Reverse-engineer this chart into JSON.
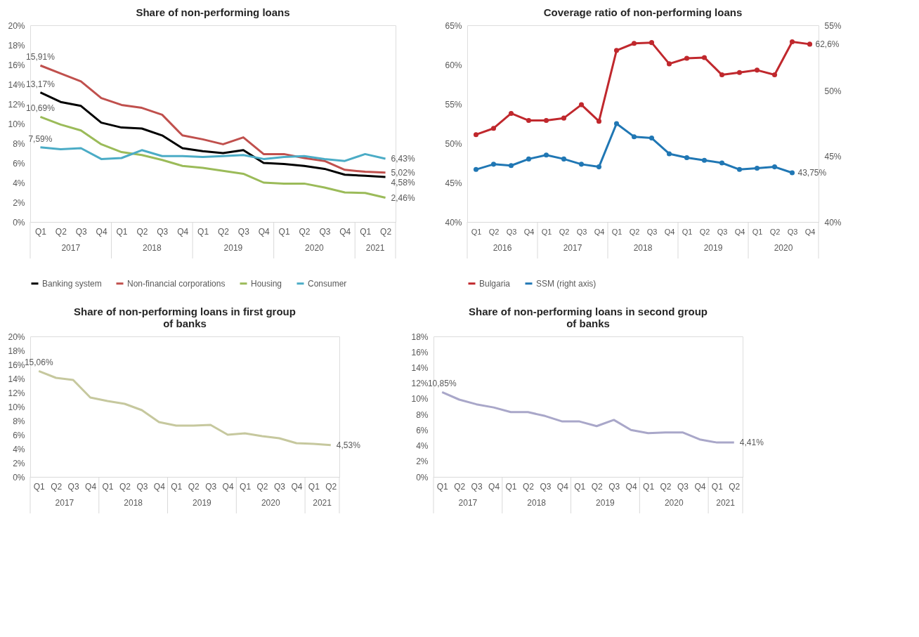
{
  "chart_data": [
    {
      "type": "line",
      "title": "Share of non-performing loans",
      "categories": [
        "Q1",
        "Q2",
        "Q3",
        "Q4",
        "Q1",
        "Q2",
        "Q3",
        "Q4",
        "Q1",
        "Q2",
        "Q3",
        "Q4",
        "Q1",
        "Q2",
        "Q3",
        "Q4",
        "Q1",
        "Q2"
      ],
      "annotations": [
        "2017",
        "2018",
        "2019",
        "2020",
        "2021"
      ],
      "ylim": [
        0,
        20
      ],
      "yticks": [
        {
          "value": 0,
          "label": "0%"
        },
        {
          "value": 2,
          "label": "2%"
        },
        {
          "value": 4,
          "label": "4%"
        },
        {
          "value": 6,
          "label": "6%"
        },
        {
          "value": 8,
          "label": "8%"
        },
        {
          "value": 10,
          "label": "10%"
        },
        {
          "value": 12,
          "label": "12%"
        },
        {
          "value": 14,
          "label": "14%"
        },
        {
          "value": 16,
          "label": "16%"
        },
        {
          "value": 18,
          "label": "18%"
        },
        {
          "value": 20,
          "label": "20%"
        }
      ],
      "legend": "bottom",
      "series": [
        {
          "name": "Banking system",
          "color": "#000000",
          "values": [
            13.17,
            12.2,
            11.8,
            10.1,
            9.6,
            9.5,
            8.8,
            7.5,
            7.2,
            7.0,
            7.3,
            6.0,
            5.9,
            5.7,
            5.4,
            4.8,
            4.7,
            4.58
          ],
          "value_labels": [
            "13,17%",
            null,
            null,
            null,
            null,
            null,
            null,
            null,
            null,
            null,
            null,
            null,
            null,
            null,
            null,
            null,
            null,
            "4,58%"
          ]
        },
        {
          "name": "Non-financial corporations",
          "color": "#c0504d",
          "values": [
            15.91,
            15.1,
            14.3,
            12.6,
            11.9,
            11.6,
            10.9,
            8.8,
            8.4,
            7.9,
            8.6,
            6.9,
            6.9,
            6.5,
            6.2,
            5.3,
            5.1,
            5.02
          ],
          "value_labels": [
            "15,91%",
            null,
            null,
            null,
            null,
            null,
            null,
            null,
            null,
            null,
            null,
            null,
            null,
            null,
            null,
            null,
            null,
            "5,02%"
          ]
        },
        {
          "name": "Housing",
          "color": "#9bbb59",
          "values": [
            10.69,
            9.9,
            9.3,
            7.9,
            7.1,
            6.8,
            6.3,
            5.7,
            5.5,
            5.2,
            4.9,
            4.0,
            3.9,
            3.9,
            3.5,
            3.0,
            2.95,
            2.46
          ],
          "value_labels": [
            "10,69%",
            null,
            null,
            null,
            null,
            null,
            null,
            null,
            null,
            null,
            null,
            null,
            null,
            null,
            null,
            null,
            null,
            "2,46%"
          ]
        },
        {
          "name": "Consumer",
          "color": "#4bacc6",
          "values": [
            7.59,
            7.4,
            7.5,
            6.4,
            6.5,
            7.3,
            6.7,
            6.7,
            6.6,
            6.7,
            6.8,
            6.4,
            6.6,
            6.7,
            6.4,
            6.2,
            6.9,
            6.43
          ],
          "value_labels": [
            "7,59%",
            null,
            null,
            null,
            null,
            null,
            null,
            null,
            null,
            null,
            null,
            null,
            null,
            null,
            null,
            null,
            null,
            "6,43%"
          ]
        }
      ]
    },
    {
      "type": "line",
      "title": "Coverage ratio of non-performing loans",
      "categories": [
        "Q1",
        "Q2",
        "Q3",
        "Q4",
        "Q1",
        "Q2",
        "Q3",
        "Q4",
        "Q1",
        "Q2",
        "Q3",
        "Q4",
        "Q1",
        "Q2",
        "Q3",
        "Q4",
        "Q1",
        "Q2",
        "Q3",
        "Q4"
      ],
      "annotations": [
        "2016",
        "2017",
        "2018",
        "2019",
        "2020"
      ],
      "ylim": [
        40,
        65
      ],
      "yticks": [
        {
          "value": 40,
          "label": "40%"
        },
        {
          "value": 45,
          "label": "45%"
        },
        {
          "value": 50,
          "label": "50%"
        },
        {
          "value": 55,
          "label": "55%"
        },
        {
          "value": 60,
          "label": "60%"
        },
        {
          "value": 65,
          "label": "65%"
        }
      ],
      "y2lim": [
        40,
        55
      ],
      "y2ticks": [
        {
          "value": 40,
          "label": "40%"
        },
        {
          "value": 45,
          "label": "45%"
        },
        {
          "value": 50,
          "label": "50%"
        },
        {
          "value": 55,
          "label": "55%"
        }
      ],
      "legend": "bottom",
      "marker": "circle",
      "series": [
        {
          "name": "Bulgaria",
          "color": "#c0282d",
          "values": [
            51.1,
            51.9,
            53.8,
            52.9,
            52.9,
            53.2,
            54.9,
            52.8,
            61.8,
            62.7,
            62.8,
            60.1,
            60.8,
            60.9,
            58.7,
            59.0,
            59.3,
            58.7,
            62.9,
            62.6
          ],
          "value_labels": [
            null,
            null,
            null,
            null,
            null,
            null,
            null,
            null,
            null,
            null,
            null,
            null,
            null,
            null,
            null,
            null,
            null,
            null,
            null,
            "62,6%"
          ]
        },
        {
          "name": "SSM (right axis)",
          "color": "#2077b4",
          "axis": "y2",
          "values": [
            44.0,
            44.4,
            44.3,
            44.8,
            45.1,
            44.8,
            44.4,
            44.2,
            47.5,
            46.5,
            46.4,
            45.2,
            44.9,
            44.7,
            44.5,
            44.0,
            44.1,
            44.2,
            43.75,
            null
          ],
          "value_labels": [
            null,
            null,
            null,
            null,
            null,
            null,
            null,
            null,
            null,
            null,
            null,
            null,
            null,
            null,
            null,
            null,
            null,
            null,
            "43,75%",
            null
          ]
        }
      ]
    },
    {
      "type": "line",
      "title": "Share of non-performing loans in first group of banks",
      "categories": [
        "Q1",
        "Q2",
        "Q3",
        "Q4",
        "Q1",
        "Q2",
        "Q3",
        "Q4",
        "Q1",
        "Q2",
        "Q3",
        "Q4",
        "Q1",
        "Q2",
        "Q3",
        "Q4",
        "Q1",
        "Q2"
      ],
      "annotations": [
        "2017",
        "2018",
        "2019",
        "2020",
        "2021"
      ],
      "ylim": [
        0,
        20
      ],
      "yticks": [
        {
          "value": 0,
          "label": "0%"
        },
        {
          "value": 2,
          "label": "2%"
        },
        {
          "value": 4,
          "label": "4%"
        },
        {
          "value": 6,
          "label": "6%"
        },
        {
          "value": 8,
          "label": "8%"
        },
        {
          "value": 10,
          "label": "10%"
        },
        {
          "value": 12,
          "label": "12%"
        },
        {
          "value": 14,
          "label": "14%"
        },
        {
          "value": 16,
          "label": "16%"
        },
        {
          "value": 18,
          "label": "18%"
        },
        {
          "value": 20,
          "label": "20%"
        }
      ],
      "series": [
        {
          "color": "#c6c89e",
          "values": [
            15.06,
            14.1,
            13.8,
            11.3,
            10.8,
            10.4,
            9.5,
            7.8,
            7.3,
            7.3,
            7.4,
            6.0,
            6.2,
            5.8,
            5.5,
            4.8,
            4.7,
            4.53
          ],
          "value_labels": [
            "15,06%",
            null,
            null,
            null,
            null,
            null,
            null,
            null,
            null,
            null,
            null,
            null,
            null,
            null,
            null,
            null,
            null,
            "4,53%"
          ]
        }
      ]
    },
    {
      "type": "line",
      "title": "Share of non-performing loans in second group of banks",
      "categories": [
        "Q1",
        "Q2",
        "Q3",
        "Q4",
        "Q1",
        "Q2",
        "Q3",
        "Q4",
        "Q1",
        "Q2",
        "Q3",
        "Q4",
        "Q1",
        "Q2",
        "Q3",
        "Q4",
        "Q1",
        "Q2"
      ],
      "annotations": [
        "2017",
        "2018",
        "2019",
        "2020",
        "2021"
      ],
      "ylim": [
        0,
        18
      ],
      "yticks": [
        {
          "value": 0,
          "label": "0%"
        },
        {
          "value": 2,
          "label": "2%"
        },
        {
          "value": 4,
          "label": "4%"
        },
        {
          "value": 6,
          "label": "6%"
        },
        {
          "value": 8,
          "label": "8%"
        },
        {
          "value": 10,
          "label": "10%"
        },
        {
          "value": 12,
          "label": "12%"
        },
        {
          "value": 14,
          "label": "14%"
        },
        {
          "value": 16,
          "label": "16%"
        },
        {
          "value": 18,
          "label": "18%"
        }
      ],
      "series": [
        {
          "color": "#a9a7c9",
          "values": [
            10.85,
            9.9,
            9.3,
            8.9,
            8.3,
            8.3,
            7.8,
            7.1,
            7.1,
            6.5,
            7.3,
            6.0,
            5.6,
            5.7,
            5.7,
            4.8,
            4.4,
            4.41
          ],
          "value_labels": [
            "10,85%",
            null,
            null,
            null,
            null,
            null,
            null,
            null,
            null,
            null,
            null,
            null,
            null,
            null,
            null,
            null,
            null,
            "4,41%"
          ]
        }
      ]
    }
  ]
}
